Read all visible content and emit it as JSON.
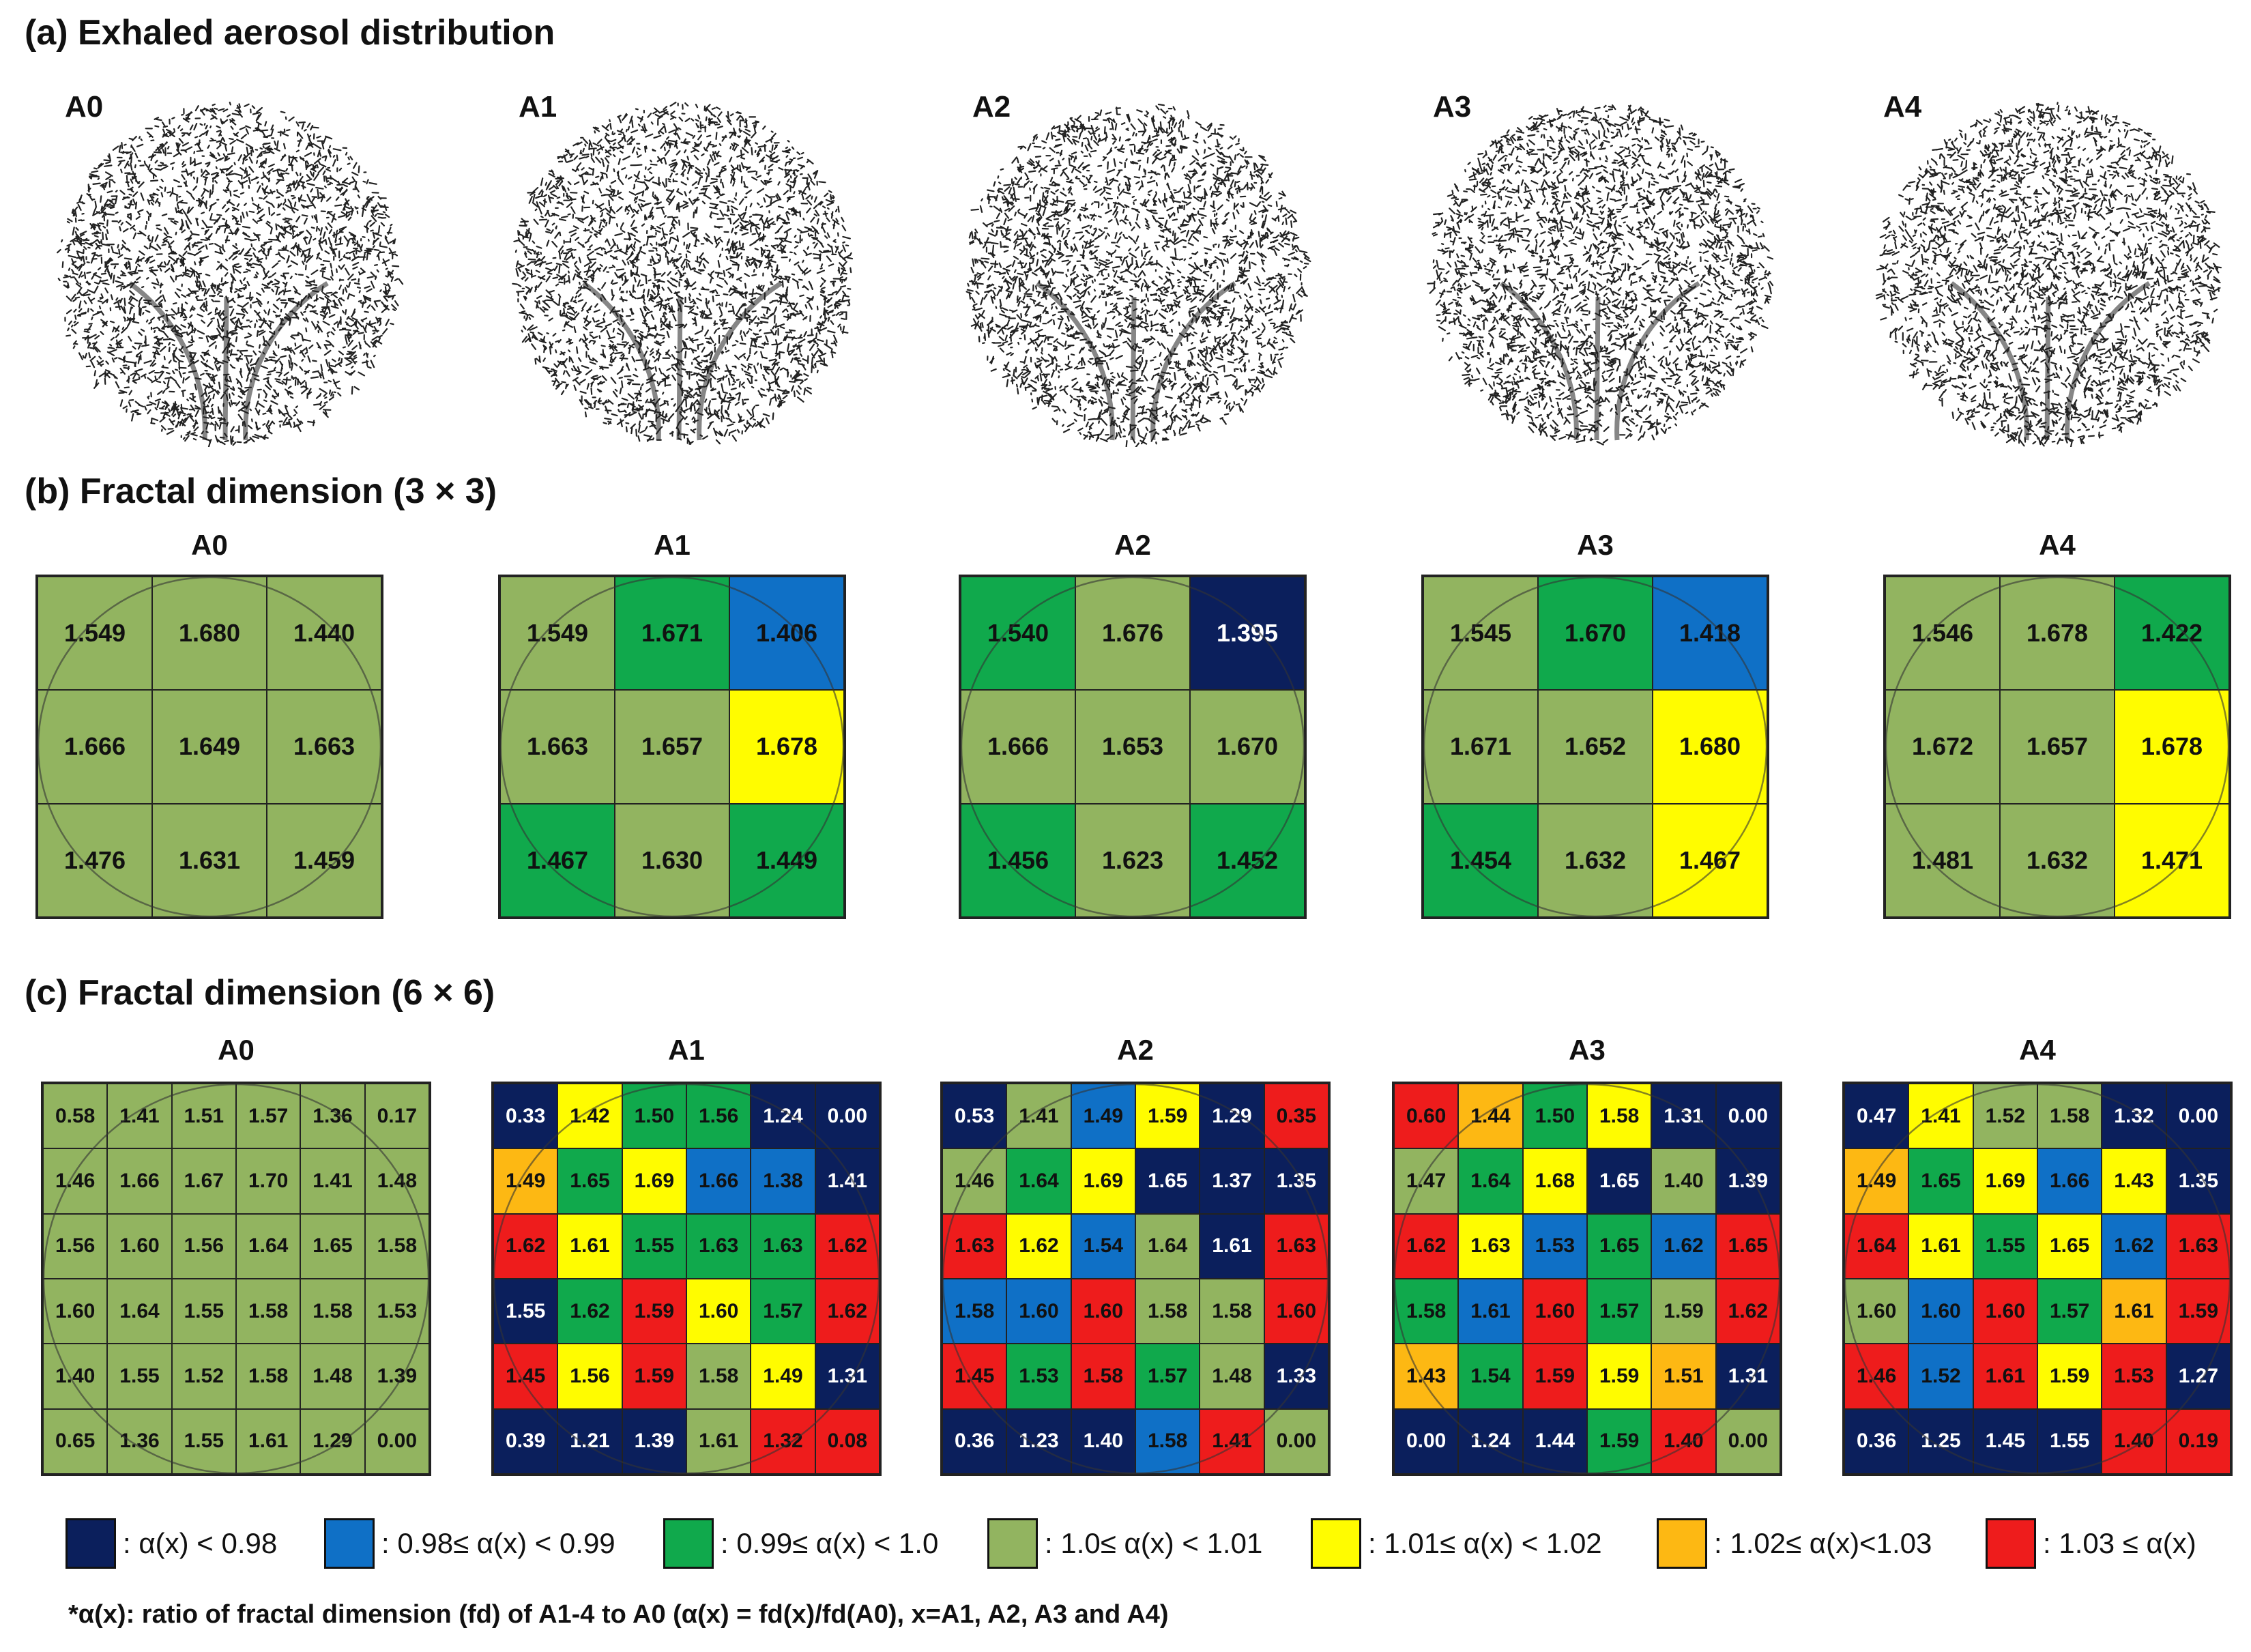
{
  "figure": {
    "section_a_title": "(a) Exhaled aerosol distribution",
    "section_b_title": "(b) Fractal dimension (3 × 3)",
    "section_c_title": "(c) Fractal dimension (6 × 6)",
    "aerosol_labels": [
      "A0",
      "A1",
      "A2",
      "A3",
      "A4"
    ],
    "footnote": "*α(x): ratio of fractal dimension (fd) of A1-4 to A0 (α(x) = fd(x)/fd(A0), x=A1, A2, A3 and A4)"
  },
  "colors": {
    "dark_blue": "#0b1f5c",
    "blue": "#0f70c6",
    "green": "#10a94c",
    "light_green": "#92b460",
    "yellow": "#fffc00",
    "orange": "#fdb813",
    "red": "#ee1c1c"
  },
  "legend": [
    {
      "color": "dark_blue",
      "label": ": α(x) < 0.98"
    },
    {
      "color": "blue",
      "label": ": 0.98≤ α(x) < 0.99"
    },
    {
      "color": "green",
      "label": ": 0.99≤ α(x) < 1.0"
    },
    {
      "color": "light_green",
      "label": ": 1.0≤ α(x) < 1.01"
    },
    {
      "color": "yellow",
      "label": ": 1.01≤ α(x) < 1.02"
    },
    {
      "color": "orange",
      "label": ": 1.02≤ α(x)<1.03"
    },
    {
      "color": "red",
      "label": ": 1.03 ≤ α(x)"
    }
  ],
  "chart_data": [
    {
      "type": "table",
      "title": "(b) Fractal dimension (3 × 3)",
      "panels": [
        {
          "label": "A0",
          "values": [
            [
              "1.549",
              "1.680",
              "1.440"
            ],
            [
              "1.666",
              "1.649",
              "1.663"
            ],
            [
              "1.476",
              "1.631",
              "1.459"
            ]
          ],
          "colors": [
            [
              "light_green",
              "light_green",
              "light_green"
            ],
            [
              "light_green",
              "light_green",
              "light_green"
            ],
            [
              "light_green",
              "light_green",
              "light_green"
            ]
          ]
        },
        {
          "label": "A1",
          "values": [
            [
              "1.549",
              "1.671",
              "1.406"
            ],
            [
              "1.663",
              "1.657",
              "1.678"
            ],
            [
              "1.467",
              "1.630",
              "1.449"
            ]
          ],
          "colors": [
            [
              "light_green",
              "green",
              "blue"
            ],
            [
              "light_green",
              "light_green",
              "yellow"
            ],
            [
              "green",
              "light_green",
              "green"
            ]
          ]
        },
        {
          "label": "A2",
          "values": [
            [
              "1.540",
              "1.676",
              "1.395"
            ],
            [
              "1.666",
              "1.653",
              "1.670"
            ],
            [
              "1.456",
              "1.623",
              "1.452"
            ]
          ],
          "colors": [
            [
              "green",
              "light_green",
              "dark_blue"
            ],
            [
              "light_green",
              "light_green",
              "light_green"
            ],
            [
              "green",
              "light_green",
              "green"
            ]
          ]
        },
        {
          "label": "A3",
          "values": [
            [
              "1.545",
              "1.670",
              "1.418"
            ],
            [
              "1.671",
              "1.652",
              "1.680"
            ],
            [
              "1.454",
              "1.632",
              "1.467"
            ]
          ],
          "colors": [
            [
              "light_green",
              "green",
              "blue"
            ],
            [
              "light_green",
              "light_green",
              "yellow"
            ],
            [
              "green",
              "light_green",
              "yellow"
            ]
          ]
        },
        {
          "label": "A4",
          "values": [
            [
              "1.546",
              "1.678",
              "1.422"
            ],
            [
              "1.672",
              "1.657",
              "1.678"
            ],
            [
              "1.481",
              "1.632",
              "1.471"
            ]
          ],
          "colors": [
            [
              "light_green",
              "light_green",
              "green"
            ],
            [
              "light_green",
              "light_green",
              "yellow"
            ],
            [
              "light_green",
              "light_green",
              "yellow"
            ]
          ]
        }
      ]
    },
    {
      "type": "table",
      "title": "(c) Fractal dimension (6 × 6)",
      "panels": [
        {
          "label": "A0",
          "values": [
            [
              "0.58",
              "1.41",
              "1.51",
              "1.57",
              "1.36",
              "0.17"
            ],
            [
              "1.46",
              "1.66",
              "1.67",
              "1.70",
              "1.41",
              "1.48"
            ],
            [
              "1.56",
              "1.60",
              "1.56",
              "1.64",
              "1.65",
              "1.58"
            ],
            [
              "1.60",
              "1.64",
              "1.55",
              "1.58",
              "1.58",
              "1.53"
            ],
            [
              "1.40",
              "1.55",
              "1.52",
              "1.58",
              "1.48",
              "1.39"
            ],
            [
              "0.65",
              "1.36",
              "1.55",
              "1.61",
              "1.29",
              "0.00"
            ]
          ],
          "colors": [
            [
              "light_green",
              "light_green",
              "light_green",
              "light_green",
              "light_green",
              "light_green"
            ],
            [
              "light_green",
              "light_green",
              "light_green",
              "light_green",
              "light_green",
              "light_green"
            ],
            [
              "light_green",
              "light_green",
              "light_green",
              "light_green",
              "light_green",
              "light_green"
            ],
            [
              "light_green",
              "light_green",
              "light_green",
              "light_green",
              "light_green",
              "light_green"
            ],
            [
              "light_green",
              "light_green",
              "light_green",
              "light_green",
              "light_green",
              "light_green"
            ],
            [
              "light_green",
              "light_green",
              "light_green",
              "light_green",
              "light_green",
              "light_green"
            ]
          ]
        },
        {
          "label": "A1",
          "values": [
            [
              "0.33",
              "1.42",
              "1.50",
              "1.56",
              "1.24",
              "0.00"
            ],
            [
              "1.49",
              "1.65",
              "1.69",
              "1.66",
              "1.38",
              "1.41"
            ],
            [
              "1.62",
              "1.61",
              "1.55",
              "1.63",
              "1.63",
              "1.62"
            ],
            [
              "1.55",
              "1.62",
              "1.59",
              "1.60",
              "1.57",
              "1.62"
            ],
            [
              "1.45",
              "1.56",
              "1.59",
              "1.58",
              "1.49",
              "1.31"
            ],
            [
              "0.39",
              "1.21",
              "1.39",
              "1.61",
              "1.32",
              "0.08"
            ]
          ],
          "colors": [
            [
              "dark_blue",
              "yellow",
              "green",
              "green",
              "dark_blue",
              "dark_blue"
            ],
            [
              "orange",
              "green",
              "yellow",
              "blue",
              "blue",
              "dark_blue"
            ],
            [
              "red",
              "yellow",
              "green",
              "green",
              "green",
              "red"
            ],
            [
              "dark_blue",
              "green",
              "red",
              "yellow",
              "green",
              "red"
            ],
            [
              "red",
              "yellow",
              "red",
              "light_green",
              "yellow",
              "dark_blue"
            ],
            [
              "dark_blue",
              "dark_blue",
              "dark_blue",
              "light_green",
              "red",
              "red"
            ]
          ]
        },
        {
          "label": "A2",
          "values": [
            [
              "0.53",
              "1.41",
              "1.49",
              "1.59",
              "1.29",
              "0.35"
            ],
            [
              "1.46",
              "1.64",
              "1.69",
              "1.65",
              "1.37",
              "1.35"
            ],
            [
              "1.63",
              "1.62",
              "1.54",
              "1.64",
              "1.61",
              "1.63"
            ],
            [
              "1.58",
              "1.60",
              "1.60",
              "1.58",
              "1.58",
              "1.60"
            ],
            [
              "1.45",
              "1.53",
              "1.58",
              "1.57",
              "1.48",
              "1.33"
            ],
            [
              "0.36",
              "1.23",
              "1.40",
              "1.58",
              "1.41",
              "0.00"
            ]
          ],
          "colors": [
            [
              "dark_blue",
              "light_green",
              "blue",
              "yellow",
              "dark_blue",
              "red"
            ],
            [
              "light_green",
              "green",
              "yellow",
              "dark_blue",
              "dark_blue",
              "dark_blue"
            ],
            [
              "red",
              "yellow",
              "blue",
              "light_green",
              "dark_blue",
              "red"
            ],
            [
              "blue",
              "blue",
              "red",
              "light_green",
              "light_green",
              "red"
            ],
            [
              "red",
              "green",
              "red",
              "green",
              "light_green",
              "dark_blue"
            ],
            [
              "dark_blue",
              "dark_blue",
              "dark_blue",
              "blue",
              "red",
              "light_green"
            ]
          ]
        },
        {
          "label": "A3",
          "values": [
            [
              "0.60",
              "1.44",
              "1.50",
              "1.58",
              "1.31",
              "0.00"
            ],
            [
              "1.47",
              "1.64",
              "1.68",
              "1.65",
              "1.40",
              "1.39"
            ],
            [
              "1.62",
              "1.63",
              "1.53",
              "1.65",
              "1.62",
              "1.65"
            ],
            [
              "1.58",
              "1.61",
              "1.60",
              "1.57",
              "1.59",
              "1.62"
            ],
            [
              "1.43",
              "1.54",
              "1.59",
              "1.59",
              "1.51",
              "1.31"
            ],
            [
              "0.00",
              "1.24",
              "1.44",
              "1.59",
              "1.40",
              "0.00"
            ]
          ],
          "colors": [
            [
              "red",
              "orange",
              "green",
              "yellow",
              "dark_blue",
              "dark_blue"
            ],
            [
              "light_green",
              "green",
              "yellow",
              "dark_blue",
              "light_green",
              "dark_blue"
            ],
            [
              "red",
              "yellow",
              "blue",
              "green",
              "blue",
              "red"
            ],
            [
              "green",
              "blue",
              "red",
              "green",
              "light_green",
              "red"
            ],
            [
              "orange",
              "green",
              "red",
              "yellow",
              "orange",
              "dark_blue"
            ],
            [
              "dark_blue",
              "dark_blue",
              "dark_blue",
              "green",
              "red",
              "light_green"
            ]
          ]
        },
        {
          "label": "A4",
          "values": [
            [
              "0.47",
              "1.41",
              "1.52",
              "1.58",
              "1.32",
              "0.00"
            ],
            [
              "1.49",
              "1.65",
              "1.69",
              "1.66",
              "1.43",
              "1.35"
            ],
            [
              "1.64",
              "1.61",
              "1.55",
              "1.65",
              "1.62",
              "1.63"
            ],
            [
              "1.60",
              "1.60",
              "1.60",
              "1.57",
              "1.61",
              "1.59"
            ],
            [
              "1.46",
              "1.52",
              "1.61",
              "1.59",
              "1.53",
              "1.27"
            ],
            [
              "0.36",
              "1.25",
              "1.45",
              "1.55",
              "1.40",
              "0.19"
            ]
          ],
          "colors": [
            [
              "dark_blue",
              "yellow",
              "light_green",
              "light_green",
              "dark_blue",
              "dark_blue"
            ],
            [
              "orange",
              "green",
              "yellow",
              "blue",
              "yellow",
              "dark_blue"
            ],
            [
              "red",
              "yellow",
              "green",
              "yellow",
              "blue",
              "red"
            ],
            [
              "light_green",
              "blue",
              "red",
              "green",
              "orange",
              "red"
            ],
            [
              "red",
              "blue",
              "red",
              "yellow",
              "red",
              "dark_blue"
            ],
            [
              "dark_blue",
              "dark_blue",
              "dark_blue",
              "dark_blue",
              "red",
              "red"
            ]
          ]
        }
      ]
    }
  ]
}
